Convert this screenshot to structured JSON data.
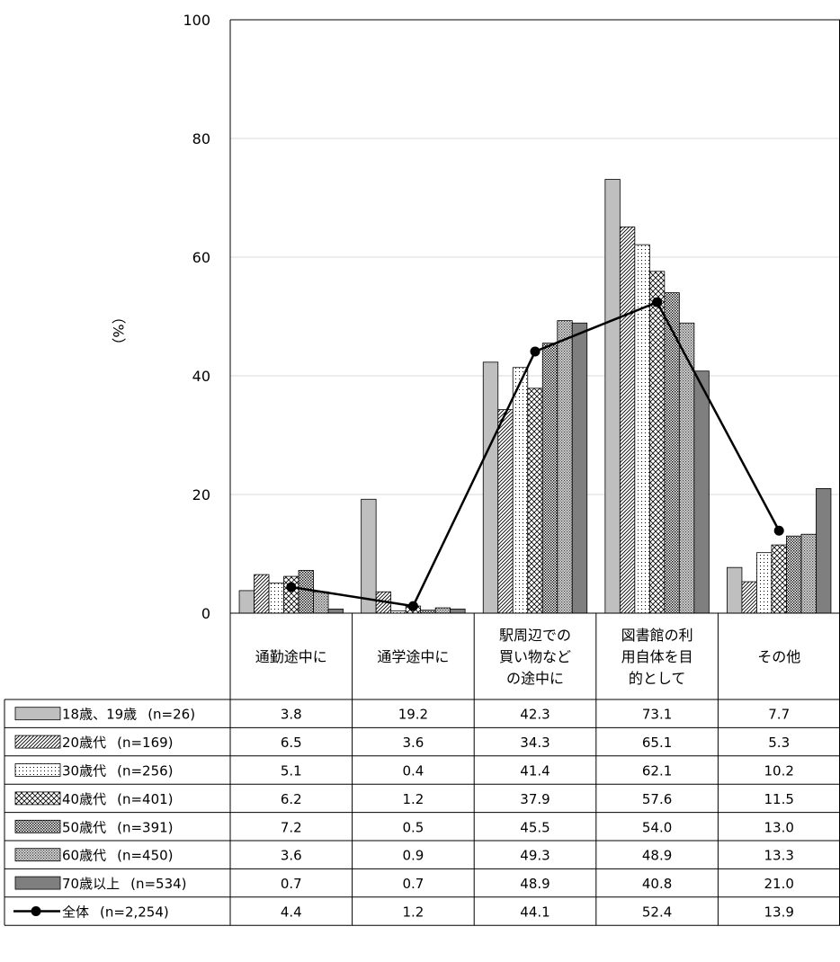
{
  "chart_data": {
    "type": "bar",
    "ylabel": "（%）",
    "ylim": [
      0,
      100
    ],
    "yticks": [
      0,
      20,
      40,
      60,
      80,
      100
    ],
    "grid": true,
    "legend_placement": "table-left",
    "categories": [
      [
        "通勤途中に"
      ],
      [
        "通学途中に"
      ],
      [
        "駅周辺での",
        "買い物など",
        "の途中に"
      ],
      [
        "図書館の利",
        "用自体を目",
        "的として"
      ],
      [
        "その他"
      ]
    ],
    "series": [
      {
        "name": "18歳、19歳",
        "n": "(n=26)",
        "kind": "bar",
        "pattern": "solid-light",
        "values": [
          3.8,
          19.2,
          42.3,
          73.1,
          7.7
        ],
        "labels": [
          "3.8",
          "19.2",
          "42.3",
          "73.1",
          "7.7"
        ]
      },
      {
        "name": "20歳代",
        "n": "(n=169)",
        "kind": "bar",
        "pattern": "diagonal",
        "values": [
          6.5,
          3.6,
          34.3,
          65.1,
          5.3
        ],
        "labels": [
          "6.5",
          "3.6",
          "34.3",
          "65.1",
          "5.3"
        ]
      },
      {
        "name": "30歳代",
        "n": "(n=256)",
        "kind": "bar",
        "pattern": "dots-sparse",
        "values": [
          5.1,
          0.4,
          41.4,
          62.1,
          10.2
        ],
        "labels": [
          "5.1",
          "0.4",
          "41.4",
          "62.1",
          "10.2"
        ]
      },
      {
        "name": "40歳代",
        "n": "(n=401)",
        "kind": "bar",
        "pattern": "crosshatch",
        "values": [
          6.2,
          1.2,
          37.9,
          57.6,
          11.5
        ],
        "labels": [
          "6.2",
          "1.2",
          "37.9",
          "57.6",
          "11.5"
        ]
      },
      {
        "name": "50歳代",
        "n": "(n=391)",
        "kind": "bar",
        "pattern": "dots-dense",
        "values": [
          7.2,
          0.5,
          45.5,
          54.0,
          13.0
        ],
        "labels": [
          "7.2",
          "0.5",
          "45.5",
          "54.0",
          "13.0"
        ]
      },
      {
        "name": "60歳代",
        "n": "(n=450)",
        "kind": "bar",
        "pattern": "dots-gray",
        "values": [
          3.6,
          0.9,
          49.3,
          48.9,
          13.3
        ],
        "labels": [
          "3.6",
          "0.9",
          "49.3",
          "48.9",
          "13.3"
        ]
      },
      {
        "name": "70歳以上",
        "n": "(n=534)",
        "kind": "bar",
        "pattern": "solid-dark",
        "values": [
          0.7,
          0.7,
          48.9,
          40.8,
          21.0
        ],
        "labels": [
          "0.7",
          "0.7",
          "48.9",
          "40.8",
          "21.0"
        ]
      },
      {
        "name": "全体",
        "n": "(n=2,254)",
        "kind": "line",
        "values": [
          4.4,
          1.2,
          44.1,
          52.4,
          13.9
        ],
        "labels": [
          "4.4",
          "1.2",
          "44.1",
          "52.4",
          "13.9"
        ]
      }
    ],
    "colors": {
      "solid_light": "#bfbfbf",
      "solid_dark": "#7f7f7f",
      "line": "#000000",
      "grid": "#d9d9d9",
      "border": "#000000"
    }
  }
}
